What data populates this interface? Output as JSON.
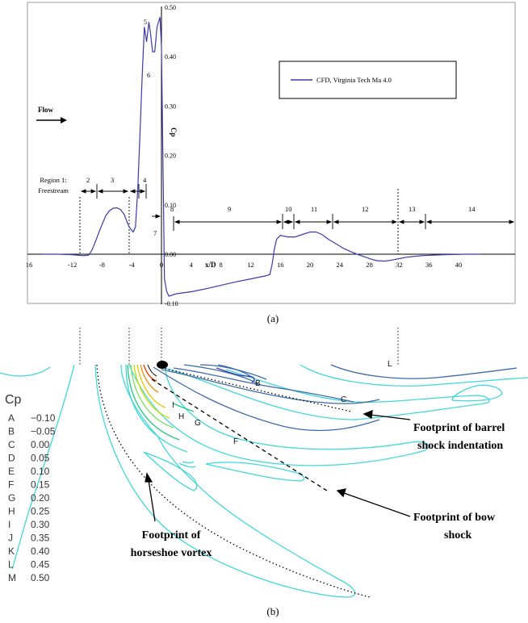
{
  "chart_data": {
    "type": "line",
    "xlabel": "x/D",
    "ylabel": "Cp",
    "xlim": [
      -16,
      43
    ],
    "ylim": [
      -0.1,
      0.5
    ],
    "x_ticks": [
      "16",
      "-12",
      "-8",
      "-4",
      "0",
      "4",
      "8",
      "12",
      "16",
      "20",
      "24",
      "28",
      "32",
      "36",
      "40"
    ],
    "y_ticks": [
      "-0.10",
      "0.00",
      "0.10",
      "0.20",
      "0.30",
      "0.40",
      "0.50"
    ],
    "series": [
      {
        "name": "CFD, Virginia Tech Ma 4.0",
        "color": "#3a3ab0",
        "x": [
          -16,
          -14,
          -12,
          -10.5,
          -9.8,
          -9.3,
          -8.9,
          -8.4,
          -8.0,
          -7.5,
          -7.0,
          -6.5,
          -6.0,
          -5.5,
          -5.0,
          -4.5,
          -4.1,
          -3.8,
          -3.5,
          -3.2,
          -2.9,
          -2.6,
          -2.3,
          -2.0,
          -1.7,
          -1.5,
          -1.2,
          -0.9,
          -0.6,
          -0.4,
          -0.2,
          0.0,
          0.4,
          0.7,
          1.0,
          2.0,
          4.0,
          6.0,
          8.0,
          10.0,
          12.0,
          14.0,
          14.6,
          14.9,
          15.2,
          15.5,
          16.0,
          17.0,
          18.0,
          19.0,
          20.0,
          20.8,
          21.6,
          22.5,
          23.5,
          24.5,
          25.5,
          26.5,
          27.5,
          28.2,
          29.0,
          30.0,
          31.0,
          32.0,
          33.0,
          35.0,
          38.0,
          41.0,
          43.0
        ],
        "y": [
          0.0,
          0.0,
          -0.001,
          -0.003,
          -0.002,
          0.01,
          0.025,
          0.045,
          0.06,
          0.078,
          0.088,
          0.093,
          0.094,
          0.09,
          0.08,
          0.06,
          0.05,
          0.045,
          0.055,
          0.13,
          0.24,
          0.36,
          0.46,
          0.43,
          0.47,
          0.45,
          0.41,
          0.41,
          0.46,
          0.47,
          0.48,
          0.42,
          -0.05,
          -0.075,
          -0.085,
          -0.08,
          -0.076,
          -0.07,
          -0.063,
          -0.056,
          -0.05,
          -0.044,
          -0.041,
          -0.02,
          0.01,
          0.03,
          0.038,
          0.035,
          0.035,
          0.04,
          0.045,
          0.045,
          0.04,
          0.03,
          0.021,
          0.012,
          0.005,
          -0.001,
          -0.006,
          -0.01,
          -0.013,
          -0.014,
          -0.012,
          -0.009,
          -0.006,
          -0.003,
          -0.001,
          0.0,
          0.0
        ]
      }
    ],
    "legend": "top-right",
    "grid": false,
    "annotations": {
      "flow": "Flow",
      "region1": "Region 1:",
      "freestream": "Freestream",
      "peak_labels": [
        "5",
        "6"
      ],
      "region_numbers": [
        "2",
        "3",
        "4",
        "7",
        "8",
        "9",
        "10",
        "11",
        "12",
        "13",
        "14"
      ]
    }
  },
  "caption_a": "(a)",
  "caption_b": "(b)",
  "contour_legend": {
    "title": "Cp",
    "rows": [
      {
        "letter": "A",
        "value": "−0.10"
      },
      {
        "letter": "B",
        "value": "−0.05"
      },
      {
        "letter": "C",
        "value": "0.00"
      },
      {
        "letter": "D",
        "value": "0.05"
      },
      {
        "letter": "E",
        "value": "0.10"
      },
      {
        "letter": "F",
        "value": "0.15"
      },
      {
        "letter": "G",
        "value": "0.20"
      },
      {
        "letter": "H",
        "value": "0.25"
      },
      {
        "letter": "I",
        "value": "0.30"
      },
      {
        "letter": "J",
        "value": "0.35"
      },
      {
        "letter": "K",
        "value": "0.40"
      },
      {
        "letter": "L",
        "value": "0.45"
      },
      {
        "letter": "M",
        "value": "0.50"
      }
    ]
  },
  "contour_labels": [
    "B",
    "C",
    "F",
    "G",
    "H",
    "I",
    "L"
  ],
  "annotations_b": {
    "barrel_1": "Footprint of barrel",
    "barrel_2": "shock indentation",
    "bow_1": "Footprint of bow",
    "bow_2": "shock",
    "horse_1": "Footprint of",
    "horse_2": "horseshoe vortex"
  }
}
